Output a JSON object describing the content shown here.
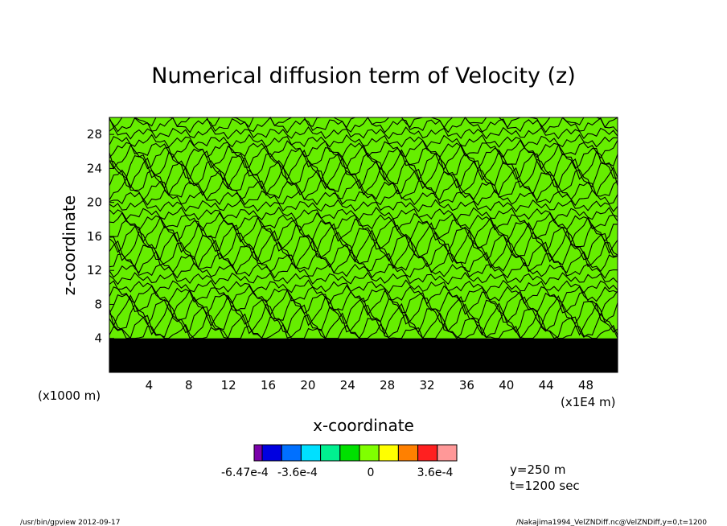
{
  "chart_data": {
    "type": "heatmap",
    "title": "Numerical diffusion term of Velocity (z)",
    "xlabel": "x-coordinate",
    "ylabel": "z-coordinate",
    "x_unit": "(x1E4 m)",
    "y_unit": "(x1000 m)",
    "xlim": [
      0,
      51.2
    ],
    "ylim": [
      0,
      30
    ],
    "x_ticks": [
      "4",
      "8",
      "12",
      "16",
      "20",
      "24",
      "28",
      "32",
      "36",
      "40",
      "44",
      "48"
    ],
    "y_ticks": [
      "4",
      "8",
      "12",
      "16",
      "20",
      "24",
      "28"
    ],
    "colorbar": {
      "colors": [
        "#7a00aa",
        "#0000e0",
        "#0070ff",
        "#00e0ff",
        "#00f090",
        "#00e000",
        "#80ff00",
        "#ffff00",
        "#ff8000",
        "#ff2020",
        "#ff9898"
      ],
      "labels": [
        "-6.47e-4",
        "-3.6e-4",
        "0",
        "3.6e-4"
      ]
    },
    "background_color": "#66ee00",
    "contour_color": "#000000",
    "dense_layer_top": 4
  },
  "annotations": {
    "y_value": "y=250 m",
    "t_value": "t=1200 sec"
  },
  "footer": {
    "left": "/usr/bin/gpview   2012-09-17",
    "right": "/Nakajima1994_VelZNDiff.nc@VelZNDiff,y=0,t=1200"
  }
}
